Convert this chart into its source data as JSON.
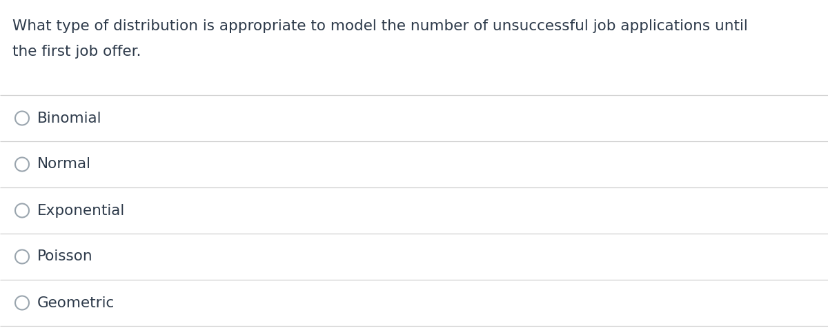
{
  "question_line1": "What type of distribution is appropriate to model the number of unsuccessful job applications until",
  "question_line2": "the first job offer.",
  "options": [
    "Binomial",
    "Normal",
    "Exponential",
    "Poisson",
    "Geometric"
  ],
  "background_color": "#ffffff",
  "text_color": "#2d3a4a",
  "line_color": "#d0d0d0",
  "circle_color": "#9aa5ae",
  "question_fontsize": 15.5,
  "option_fontsize": 15.5,
  "fig_width": 12.0,
  "fig_height": 4.76,
  "dpi": 100
}
